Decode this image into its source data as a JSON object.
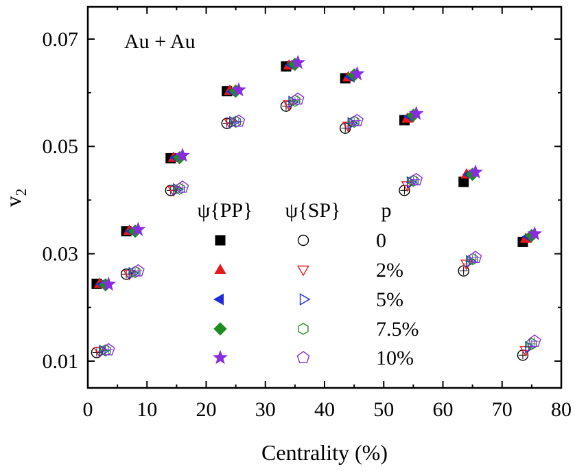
{
  "chart_data": {
    "type": "scatter",
    "title": "",
    "annotation": "Au + Au",
    "xlabel": "Centrality (%)",
    "ylabel": "v",
    "ylabel_sub": "2",
    "xlim": [
      0,
      80
    ],
    "ylim": [
      0.005,
      0.076
    ],
    "xticks": [
      0,
      10,
      20,
      30,
      40,
      50,
      60,
      70,
      80
    ],
    "xtick_labels": [
      "0",
      "10",
      "20",
      "30",
      "40",
      "50",
      "60",
      "70",
      "80"
    ],
    "yticks": [
      0.01,
      0.03,
      0.05,
      0.07
    ],
    "ytick_labels": [
      "0.01",
      "0.03",
      "0.05",
      "0.07"
    ],
    "grid": false,
    "legend": {
      "position": "center",
      "headers": [
        "ψ{PP}",
        "ψ{SP}",
        "p"
      ],
      "rows": [
        "0",
        "2%",
        "5%",
        "7.5%",
        "10%"
      ]
    },
    "series": [
      {
        "name": "ψ{PP}, p = 0",
        "marker": "square-filled",
        "color": "#000000",
        "x": [
          1.5,
          6.5,
          14,
          23.5,
          33.5,
          43.5,
          53.5,
          63.5,
          73.5
        ],
        "y": [
          0.0244,
          0.0342,
          0.0478,
          0.0603,
          0.0649,
          0.0627,
          0.0549,
          0.0434,
          0.0322
        ]
      },
      {
        "name": "ψ{PP}, p = 2%",
        "marker": "triangle-up-filled",
        "color": "#e41a1c",
        "x": [
          2.0,
          7.0,
          14.5,
          24.0,
          34.0,
          44.0,
          54.0,
          64.0,
          74.0
        ],
        "y": [
          0.0244,
          0.0343,
          0.0479,
          0.0604,
          0.0651,
          0.0629,
          0.0552,
          0.0448,
          0.0328
        ]
      },
      {
        "name": "ψ{PP}, p = 5%",
        "marker": "triangle-left-filled",
        "color": "#1f2bd6",
        "x": [
          2.5,
          7.5,
          15.0,
          24.5,
          34.5,
          44.5,
          54.5,
          64.5,
          74.5
        ],
        "y": [
          0.0243,
          0.0342,
          0.0479,
          0.0602,
          0.0652,
          0.063,
          0.0556,
          0.0448,
          0.0332
        ]
      },
      {
        "name": "ψ{PP}, p = 7.5%",
        "marker": "diamond-filled",
        "color": "#1e8c1e",
        "x": [
          3.0,
          8.0,
          15.5,
          25.0,
          35.0,
          45.0,
          55.0,
          65.0,
          75.0
        ],
        "y": [
          0.0242,
          0.0342,
          0.0479,
          0.0603,
          0.0653,
          0.0633,
          0.0558,
          0.0448,
          0.0334
        ]
      },
      {
        "name": "ψ{PP}, p = 10%",
        "marker": "star-filled",
        "color": "#8a2be2",
        "x": [
          3.5,
          8.5,
          16.0,
          25.5,
          35.5,
          45.5,
          55.5,
          65.5,
          75.5
        ],
        "y": [
          0.0243,
          0.0345,
          0.0483,
          0.0605,
          0.0656,
          0.0635,
          0.0561,
          0.0452,
          0.0337
        ]
      },
      {
        "name": "ψ{SP}, p = 0",
        "marker": "circle-open",
        "color": "#000000",
        "x": [
          1.5,
          6.5,
          14,
          23.5,
          33.5,
          43.5,
          53.5,
          63.5,
          73.5
        ],
        "y": [
          0.0116,
          0.0262,
          0.0418,
          0.0543,
          0.0575,
          0.0534,
          0.0418,
          0.0268,
          0.0111
        ]
      },
      {
        "name": "ψ{SP}, p = 2%",
        "marker": "triangle-down-open",
        "color": "#e41a1c",
        "x": [
          2.0,
          7.0,
          14.5,
          24.0,
          34.0,
          44.0,
          54.0,
          64.0,
          74.0
        ],
        "y": [
          0.0118,
          0.0262,
          0.0418,
          0.0544,
          0.0578,
          0.0538,
          0.0427,
          0.0281,
          0.012
        ]
      },
      {
        "name": "ψ{SP}, p = 5%",
        "marker": "triangle-right-open",
        "color": "#1f2bd6",
        "x": [
          2.5,
          7.5,
          15.0,
          24.5,
          34.5,
          44.5,
          54.5,
          64.5,
          74.5
        ],
        "y": [
          0.0119,
          0.0264,
          0.042,
          0.0545,
          0.0583,
          0.0543,
          0.0433,
          0.0286,
          0.0126
        ]
      },
      {
        "name": "ψ{SP}, p = 7.5%",
        "marker": "hexagon-open",
        "color": "#1e8c1e",
        "x": [
          3.0,
          8.0,
          15.5,
          25.0,
          35.0,
          45.0,
          55.0,
          65.0,
          75.0
        ],
        "y": [
          0.012,
          0.0266,
          0.0421,
          0.0546,
          0.0585,
          0.0546,
          0.0436,
          0.029,
          0.0132
        ]
      },
      {
        "name": "ψ{SP}, p = 10%",
        "marker": "pentagon-open",
        "color": "#8a2be2",
        "x": [
          3.5,
          8.5,
          16.0,
          25.5,
          35.5,
          45.5,
          55.5,
          65.5,
          75.5
        ],
        "y": [
          0.0121,
          0.0268,
          0.0424,
          0.0547,
          0.0588,
          0.0548,
          0.0438,
          0.0293,
          0.0137
        ]
      }
    ]
  }
}
